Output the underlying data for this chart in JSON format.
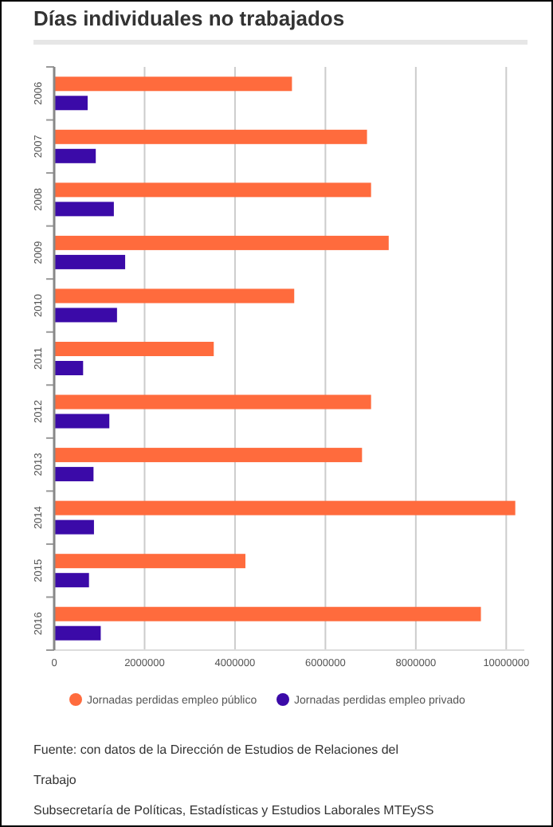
{
  "chart_data": {
    "type": "bar",
    "orientation": "horizontal",
    "title": "Días individuales no trabajados",
    "categories": [
      "2006",
      "2007",
      "2008",
      "2009",
      "2010",
      "2011",
      "2012",
      "2013",
      "2014",
      "2015",
      "2016"
    ],
    "series": [
      {
        "name": "Jornadas perdidas empleo público",
        "color": "#ff6b3d",
        "values": [
          5260000,
          6920000,
          7010000,
          7400000,
          5310000,
          3530000,
          7010000,
          6810000,
          10200000,
          4230000,
          9440000
        ]
      },
      {
        "name": "Jornadas perdidas empleo privado",
        "color": "#3b0aa8",
        "values": [
          740000,
          920000,
          1320000,
          1570000,
          1390000,
          640000,
          1220000,
          870000,
          880000,
          770000,
          1030000
        ]
      }
    ],
    "xlim": [
      0,
      10400000
    ],
    "xticks": [
      0,
      2000000,
      4000000,
      6000000,
      8000000,
      10000000
    ],
    "grid": "x",
    "legend": "bottom",
    "annotations": [
      "Fuente: con datos de la Dirección de Estudios de Relaciones del Trabajo",
      "Subsecretaría de Políticas, Estadísticas y Estudios Laborales MTEySS"
    ]
  }
}
